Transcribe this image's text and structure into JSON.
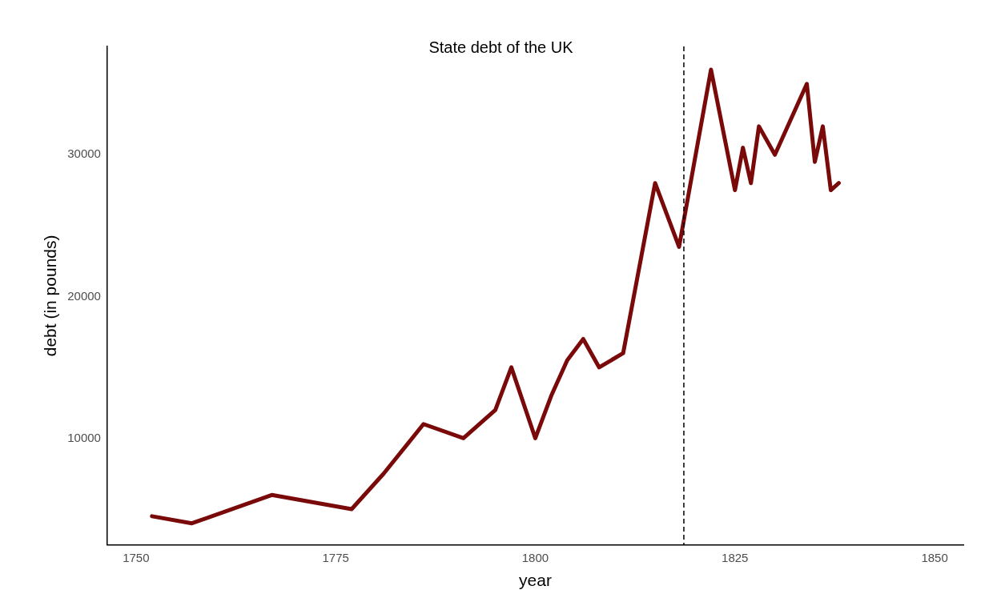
{
  "chart_data": {
    "type": "line",
    "title": "State debt of the UK",
    "xlabel": "year",
    "ylabel": "debt (in pounds)",
    "x": [
      1752,
      1757,
      1767,
      1777,
      1781,
      1786,
      1791,
      1795,
      1797,
      1800,
      1802,
      1804,
      1806,
      1808,
      1811,
      1815,
      1818,
      1822,
      1825,
      1826,
      1827,
      1828,
      1830,
      1834,
      1835,
      1836,
      1837,
      1838
    ],
    "series": [
      {
        "color": "#7a0a0a",
        "values": [
          4500,
          4000,
          6000,
          5000,
          7500,
          11000,
          10000,
          12000,
          15000,
          10000,
          13000,
          15500,
          17000,
          15000,
          16000,
          28000,
          23500,
          36000,
          27500,
          30500,
          28000,
          32000,
          30000,
          35000,
          29500,
          32000,
          27500,
          28000
        ]
      }
    ],
    "xlim": [
      1746.4,
      1853.6
    ],
    "ylim": [
      2470,
      37640
    ],
    "xticks": [
      1750,
      1775,
      1800,
      1825,
      1850
    ],
    "yticks": [
      10000,
      20000,
      30000
    ],
    "grid": false,
    "legend": false,
    "marker": "none",
    "line_style": "solid",
    "ref_lines": [
      {
        "axis": "x",
        "value": 1818.6,
        "color": "#000000",
        "line_style": "dashed"
      }
    ]
  }
}
